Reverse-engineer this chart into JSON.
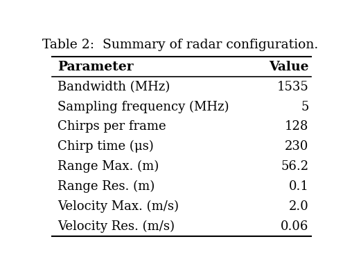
{
  "title": "Table 2:  Summary of radar configuration.",
  "col_headers": [
    "Parameter",
    "Value"
  ],
  "rows": [
    [
      "Bandwidth (MHz)",
      "1535"
    ],
    [
      "Sampling frequency (MHz)",
      "5"
    ],
    [
      "Chirps per frame",
      "128"
    ],
    [
      "Chirp time (μs)",
      "230"
    ],
    [
      "Range Max. (m)",
      "56.2"
    ],
    [
      "Range Res. (m)",
      "0.1"
    ],
    [
      "Velocity Max. (m/s)",
      "2.0"
    ],
    [
      "Velocity Res. (m/s)",
      "0.06"
    ]
  ],
  "bg_color": "#ffffff",
  "text_color": "#000000",
  "title_fontsize": 13.5,
  "header_fontsize": 13.5,
  "row_fontsize": 13.0,
  "fig_width": 5.08,
  "fig_height": 3.88
}
